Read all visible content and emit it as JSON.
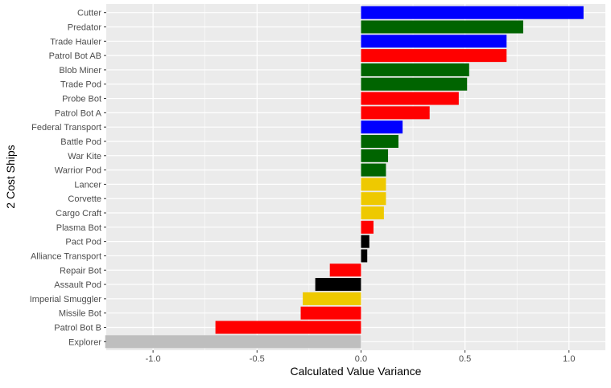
{
  "chart_data": {
    "type": "bar",
    "orientation": "horizontal",
    "title": "",
    "xlabel": "Calculated Value Variance",
    "ylabel": "2 Cost Ships",
    "xlim": [
      -1.225,
      1.175
    ],
    "xticks": [
      -1.0,
      -0.5,
      0.0,
      0.5,
      1.0
    ],
    "xtick_labels": [
      "-1.0",
      "-0.5",
      "0.0",
      "0.5",
      "1.0"
    ],
    "grid": true,
    "legend": "none",
    "categories": [
      "Cutter",
      "Predator",
      "Trade Hauler",
      "Patrol Bot AB",
      "Blob Miner",
      "Trade Pod",
      "Probe Bot",
      "Patrol Bot A",
      "Federal Transport",
      "Battle Pod",
      "War Kite",
      "Warrior Pod",
      "Lancer",
      "Corvette",
      "Cargo Craft",
      "Plasma Bot",
      "Pact Pod",
      "Alliance Transport",
      "Repair Bot",
      "Assault Pod",
      "Imperial Smuggler",
      "Missile Bot",
      "Patrol Bot B",
      "Explorer"
    ],
    "values": [
      1.07,
      0.78,
      0.7,
      0.7,
      0.52,
      0.51,
      0.47,
      0.33,
      0.2,
      0.18,
      0.13,
      0.12,
      0.12,
      0.12,
      0.11,
      0.06,
      0.04,
      0.03,
      -0.15,
      -0.22,
      -0.28,
      -0.29,
      -0.7,
      -1.23
    ],
    "bar_colors": [
      "#0000ff",
      "#006400",
      "#0000ff",
      "#ff0000",
      "#006400",
      "#006400",
      "#ff0000",
      "#ff0000",
      "#0000ff",
      "#006400",
      "#006400",
      "#006400",
      "#eec900",
      "#eec900",
      "#eec900",
      "#ff0000",
      "#000000",
      "#000000",
      "#ff0000",
      "#000000",
      "#eec900",
      "#ff0000",
      "#ff0000",
      "#bebebe"
    ],
    "panel_background": "#ebebeb",
    "grid_color": "#ffffff"
  }
}
